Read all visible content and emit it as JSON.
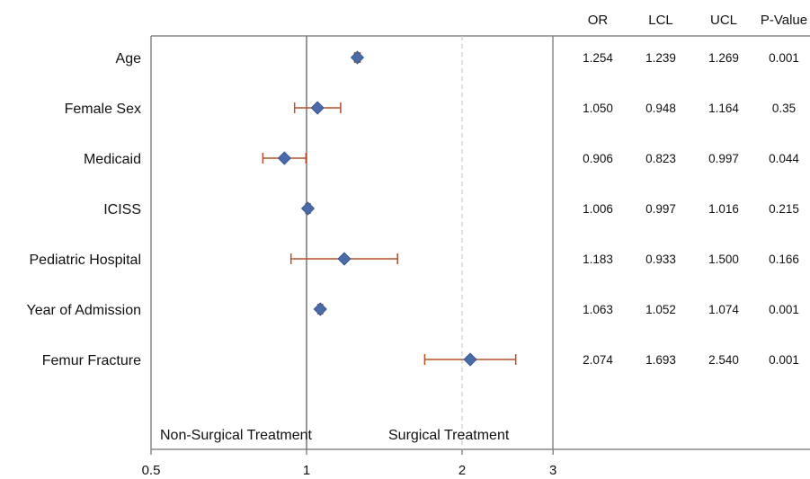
{
  "chart_data": {
    "type": "forest",
    "xscale": "log",
    "xlim": [
      0.5,
      3
    ],
    "x_ticks": [
      0.5,
      1,
      2,
      3
    ],
    "x_tick_labels": [
      "0.5",
      "1",
      "2",
      "3"
    ],
    "reference_lines": [
      1,
      2
    ],
    "region_labels": {
      "left": "Non-Surgical Treatment",
      "right": "Surgical Treatment"
    },
    "columns": [
      "OR",
      "LCL",
      "UCL",
      "P-Value"
    ],
    "rows": [
      {
        "label": "Age",
        "or": 1.254,
        "lcl": 1.239,
        "ucl": 1.269,
        "or_text": "1.254",
        "lcl_text": "1.239",
        "ucl_text": "1.269",
        "p": "0.001"
      },
      {
        "label": "Female Sex",
        "or": 1.05,
        "lcl": 0.948,
        "ucl": 1.164,
        "or_text": "1.050",
        "lcl_text": "0.948",
        "ucl_text": "1.164",
        "p": "0.35"
      },
      {
        "label": "Medicaid",
        "or": 0.906,
        "lcl": 0.823,
        "ucl": 0.997,
        "or_text": "0.906",
        "lcl_text": "0.823",
        "ucl_text": "0.997",
        "p": "0.044"
      },
      {
        "label": "ICISS",
        "or": 1.006,
        "lcl": 0.997,
        "ucl": 1.016,
        "or_text": "1.006",
        "lcl_text": "0.997",
        "ucl_text": "1.016",
        "p": "0.215"
      },
      {
        "label": "Pediatric Hospital",
        "or": 1.183,
        "lcl": 0.933,
        "ucl": 1.5,
        "or_text": "1.183",
        "lcl_text": "0.933",
        "ucl_text": "1.500",
        "p": "0.166"
      },
      {
        "label": "Year of Admission",
        "or": 1.063,
        "lcl": 1.052,
        "ucl": 1.074,
        "or_text": "1.063",
        "lcl_text": "1.052",
        "ucl_text": "1.074",
        "p": "0.001"
      },
      {
        "label": "Femur Fracture",
        "or": 2.074,
        "lcl": 1.693,
        "ucl": 2.54,
        "or_text": "2.074",
        "lcl_text": "1.693",
        "ucl_text": "2.540",
        "p": "0.001"
      }
    ],
    "colors": {
      "marker": "#4a6aa8",
      "ci": "#b5502a",
      "axis": "#888888",
      "ref_line": "#cccccc"
    }
  }
}
